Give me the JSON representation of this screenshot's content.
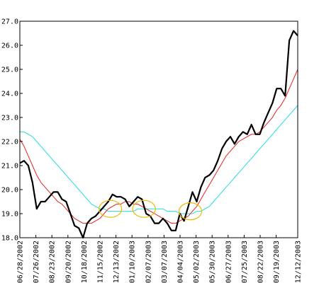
{
  "chart_data": {
    "type": "line",
    "title": "",
    "xlabel": "",
    "ylabel": "",
    "ylim": [
      18.0,
      27.0
    ],
    "y_ticks": [
      18.0,
      19.0,
      20.0,
      21.0,
      22.0,
      23.0,
      24.0,
      25.0,
      26.0,
      27.0
    ],
    "y_tick_labels": [
      "18.0",
      "19.0",
      "20.0",
      "21.0",
      "22.0",
      "23.0",
      "24.0",
      "25.0",
      "26.0",
      "27.0"
    ],
    "x_range": [
      "06/28/2002",
      "12/12/2003"
    ],
    "x_tick_labels": [
      "06/28/2002",
      "07/26/2002",
      "08/23/2002",
      "09/20/2002",
      "10/18/2002",
      "11/15/2002",
      "12/13/2002",
      "01/10/2003",
      "02/07/2003",
      "03/07/2003",
      "04/04/2003",
      "05/02/2003",
      "05/30/2003",
      "06/27/2003",
      "07/25/2003",
      "08/22/2003",
      "09/19/2003",
      "12/12/2003"
    ],
    "grid": false,
    "colors": {
      "price": "#000000",
      "short_ma": "#e82020",
      "long_ma": "#22dddd",
      "highlight": "#f0b800"
    },
    "series": [
      {
        "key": "price",
        "values": [
          21.1,
          21.2,
          21.0,
          20.3,
          19.2,
          19.5,
          19.5,
          19.7,
          19.9,
          19.9,
          19.6,
          19.5,
          19.0,
          18.5,
          18.4,
          18.0,
          18.6,
          18.8,
          18.9,
          19.1,
          19.3,
          19.5,
          19.8,
          19.7,
          19.7,
          19.6,
          19.3,
          19.5,
          19.7,
          19.6,
          19.0,
          18.9,
          18.6,
          18.6,
          18.8,
          18.6,
          18.3,
          18.3,
          19.0,
          18.7,
          19.3,
          19.9,
          19.5,
          20.1,
          20.5,
          20.6,
          20.8,
          21.2,
          21.7,
          22.0,
          22.2,
          21.9,
          22.2,
          22.4,
          22.3,
          22.7,
          22.3,
          22.3,
          22.8,
          23.2,
          23.6,
          24.2,
          24.2,
          23.9,
          26.2,
          26.6,
          26.4
        ]
      },
      {
        "key": "short_ma",
        "values": [
          22.1,
          21.8,
          21.4,
          21.0,
          20.6,
          20.3,
          20.1,
          19.9,
          19.7,
          19.5,
          19.4,
          19.2,
          19.0,
          18.8,
          18.7,
          18.6,
          18.6,
          18.6,
          18.7,
          18.8,
          19.0,
          19.2,
          19.3,
          19.4,
          19.4,
          19.5,
          19.5,
          19.4,
          19.4,
          19.3,
          19.2,
          19.1,
          19.0,
          18.9,
          18.8,
          18.7,
          18.6,
          18.6,
          18.7,
          18.8,
          18.9,
          19.1,
          19.3,
          19.6,
          19.9,
          20.2,
          20.5,
          20.8,
          21.1,
          21.4,
          21.6,
          21.8,
          22.0,
          22.1,
          22.2,
          22.3,
          22.3,
          22.4,
          22.6,
          22.8,
          23.0,
          23.3,
          23.5,
          23.8,
          24.2,
          24.6,
          25.0
        ]
      },
      {
        "key": "long_ma",
        "values": [
          22.4,
          22.4,
          22.3,
          22.2,
          22.0,
          21.8,
          21.6,
          21.4,
          21.2,
          21.0,
          20.8,
          20.6,
          20.4,
          20.2,
          20.0,
          19.8,
          19.6,
          19.4,
          19.3,
          19.2,
          19.2,
          19.1,
          19.1,
          19.1,
          19.1,
          19.1,
          19.1,
          19.1,
          19.2,
          19.2,
          19.2,
          19.2,
          19.2,
          19.2,
          19.2,
          19.1,
          19.1,
          19.1,
          19.0,
          19.0,
          19.0,
          19.0,
          19.1,
          19.1,
          19.2,
          19.3,
          19.5,
          19.7,
          19.9,
          20.1,
          20.3,
          20.5,
          20.7,
          20.9,
          21.1,
          21.3,
          21.5,
          21.7,
          21.9,
          22.1,
          22.3,
          22.5,
          22.7,
          22.9,
          23.1,
          23.3,
          23.5
        ]
      }
    ],
    "highlights": [
      {
        "center_index": 21.5,
        "value": 19.2
      },
      {
        "center_index": 29.5,
        "value": 19.2
      },
      {
        "center_index": 40.5,
        "value": 19.1
      }
    ]
  }
}
